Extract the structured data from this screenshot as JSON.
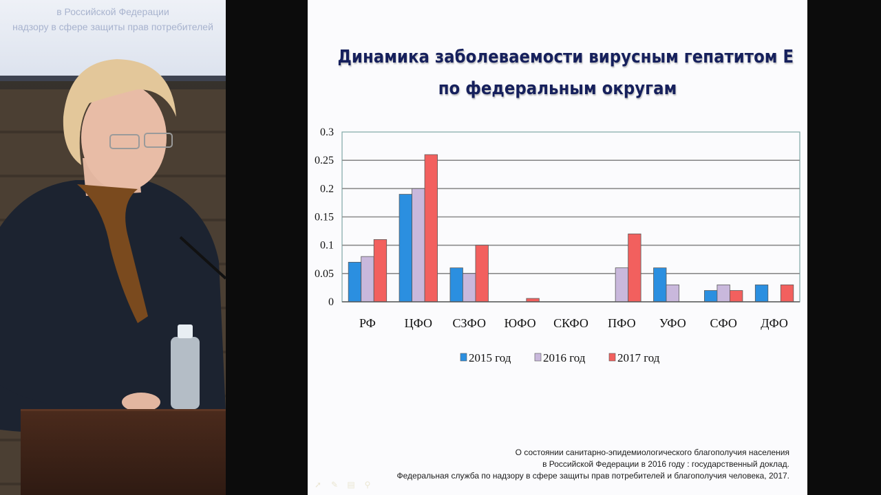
{
  "projector_text": [
    "в Российской Федерации",
    "надзору в сфере защиты прав потребителей"
  ],
  "slide": {
    "title_lines": [
      "Динамика заболеваемости вирусным гепатитом Е",
      "по федеральным округам"
    ],
    "source_lines": [
      "О состоянии санитарно-эпидемиологического  благополучия населения",
      "в Российской Федерации в 2016 году : государственный доклад.",
      "Федеральная служба по надзору в сфере защиты прав потребителей  и благополучия человека, 2017."
    ],
    "toolbar_icons": [
      "arrow-icon",
      "pen-icon",
      "slides-icon",
      "zoom-icon"
    ]
  },
  "chart_data": {
    "type": "bar",
    "categories": [
      "РФ",
      "ЦФО",
      "СЗФО",
      "ЮФО",
      "СКФО",
      "ПФО",
      "УФО",
      "СФО",
      "ДФО"
    ],
    "series": [
      {
        "name": "2015 год",
        "color": "#2b8fe0",
        "values": [
          0.07,
          0.19,
          0.06,
          0,
          0,
          0,
          0.06,
          0.02,
          0.03
        ]
      },
      {
        "name": "2016 год",
        "color": "#c9b8dc",
        "values": [
          0.08,
          0.2,
          0.05,
          0,
          0,
          0.06,
          0.03,
          0.03,
          0
        ]
      },
      {
        "name": "2017 год",
        "color": "#f2605e",
        "values": [
          0.11,
          0.26,
          0.1,
          0.006,
          0,
          0.12,
          0,
          0.02,
          0.03
        ]
      }
    ],
    "yticks": [
      "0",
      "0.05",
      "0.1",
      "0.15",
      "0.2",
      "0.25",
      "0.3"
    ],
    "ylim": [
      0,
      0.3
    ],
    "grid": true,
    "legend": "bottom"
  }
}
